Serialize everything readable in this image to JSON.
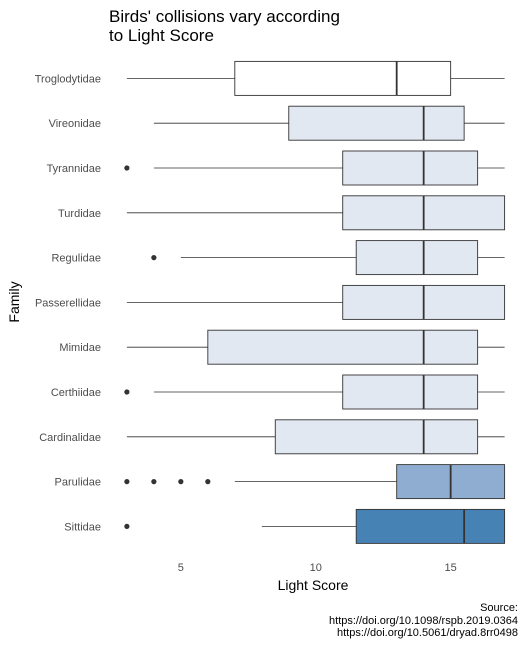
{
  "chart_data": {
    "type": "boxplot",
    "title": [
      "Birds' collisions vary according",
      "to Light Score"
    ],
    "xlabel": "Light Score",
    "ylabel": "Family",
    "xlim": [
      2.3,
      17.2
    ],
    "xticks": [
      5,
      10,
      15
    ],
    "grid": false,
    "legend": "none",
    "caption": [
      "Source:",
      "https://doi.org/10.1098/rspb.2019.0364",
      "https://doi.org/10.5061/dryad.8rr0498"
    ],
    "families": [
      {
        "name": "Troglodytidae",
        "whisker_low": 3,
        "q1": 7,
        "median": 13,
        "q3": 15,
        "whisker_high": 17,
        "outliers": [],
        "fill": "#ffffff"
      },
      {
        "name": "Vireonidae",
        "whisker_low": 4,
        "q1": 9,
        "median": 14,
        "q3": 15.5,
        "whisker_high": 17,
        "outliers": [],
        "fill": "#e2e8f2"
      },
      {
        "name": "Tyrannidae",
        "whisker_low": 4,
        "q1": 11,
        "median": 14,
        "q3": 16,
        "whisker_high": 17,
        "outliers": [
          3
        ],
        "fill": "#e2e8f2"
      },
      {
        "name": "Turdidae",
        "whisker_low": 3,
        "q1": 11,
        "median": 14,
        "q3": 17,
        "whisker_high": 17,
        "outliers": [],
        "fill": "#e2e8f2"
      },
      {
        "name": "Regulidae",
        "whisker_low": 5,
        "q1": 11.5,
        "median": 14,
        "q3": 16,
        "whisker_high": 17,
        "outliers": [
          4
        ],
        "fill": "#e2e8f2"
      },
      {
        "name": "Passerellidae",
        "whisker_low": 3,
        "q1": 11,
        "median": 14,
        "q3": 17,
        "whisker_high": 17,
        "outliers": [],
        "fill": "#e2e8f2"
      },
      {
        "name": "Mimidae",
        "whisker_low": 3,
        "q1": 6,
        "median": 14,
        "q3": 16,
        "whisker_high": 17,
        "outliers": [],
        "fill": "#e2e8f2"
      },
      {
        "name": "Certhiidae",
        "whisker_low": 4,
        "q1": 11,
        "median": 14,
        "q3": 16,
        "whisker_high": 17,
        "outliers": [
          3
        ],
        "fill": "#e2e8f2"
      },
      {
        "name": "Cardinalidae",
        "whisker_low": 3,
        "q1": 8.5,
        "median": 14,
        "q3": 16,
        "whisker_high": 17,
        "outliers": [],
        "fill": "#e2e8f2"
      },
      {
        "name": "Parulidae",
        "whisker_low": 7,
        "q1": 13,
        "median": 15,
        "q3": 17,
        "whisker_high": 17,
        "outliers": [
          3,
          4,
          5,
          6
        ],
        "fill": "#8eadd0"
      },
      {
        "name": "Sittidae",
        "whisker_low": 8,
        "q1": 11.5,
        "median": 15.5,
        "q3": 17,
        "whisker_high": 17,
        "outliers": [
          3
        ],
        "fill": "#4682b4"
      }
    ]
  }
}
